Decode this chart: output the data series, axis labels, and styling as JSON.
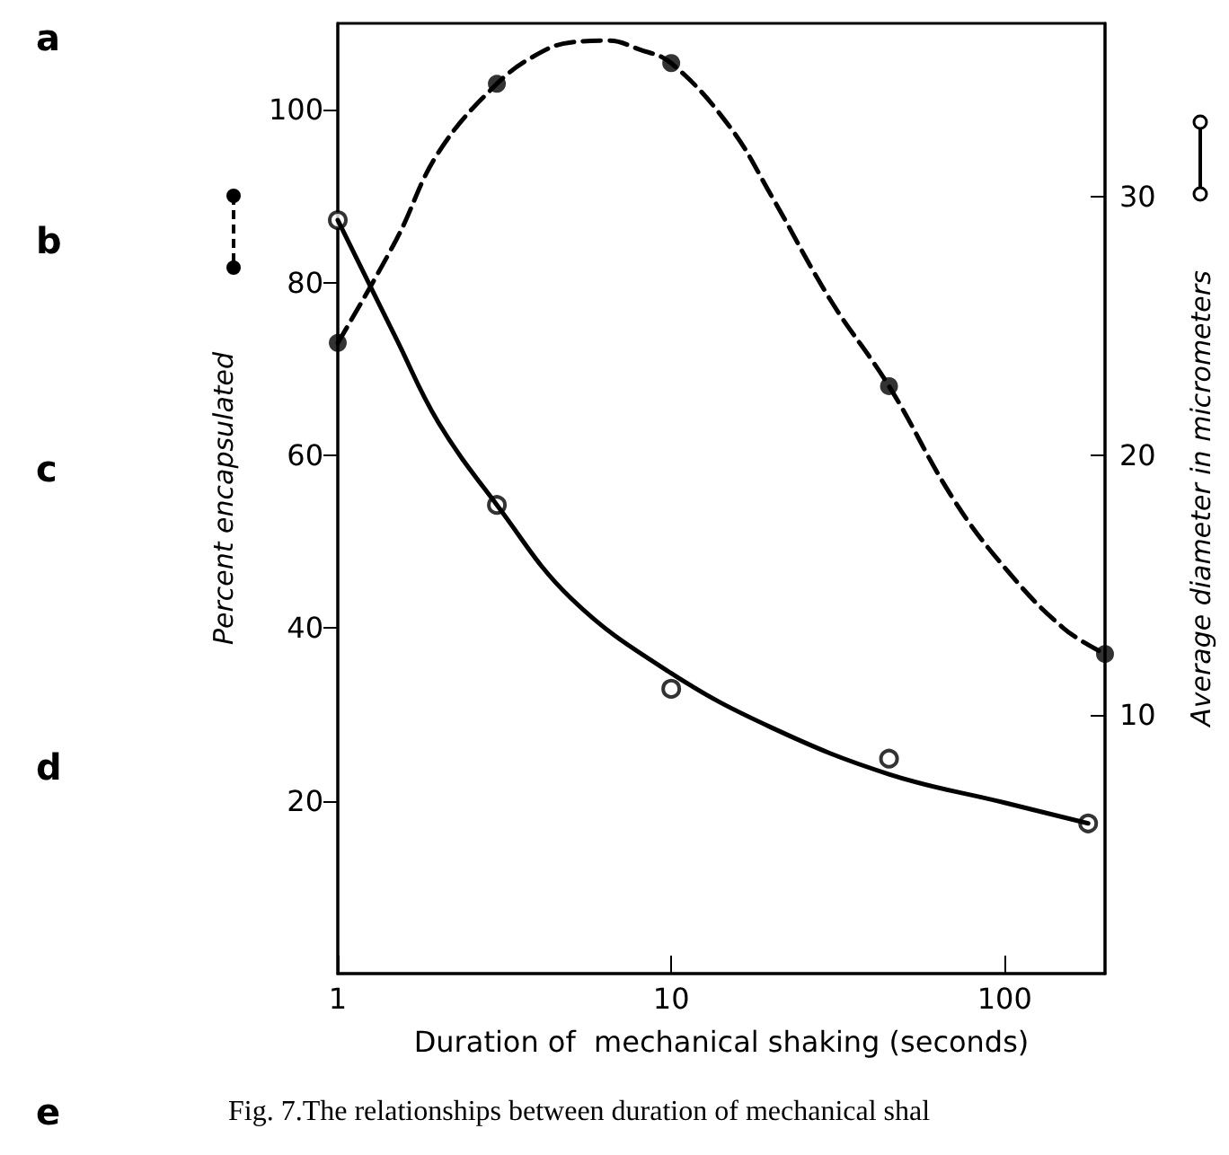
{
  "chart_data": {
    "type": "line",
    "xlabel": "Duration of  mechanical shaking (seconds)",
    "ylabel": "Percent encapsulated",
    "y2label": "Average diameter in micrometers",
    "annotations": [
      "a",
      "b",
      "c",
      "d",
      "e",
      "Fig. 7.The relationships between duration of mechanical shal"
    ],
    "log": "x",
    "xlim": [
      1,
      200
    ],
    "xticks": [
      1,
      10,
      100
    ],
    "ylim": [
      0,
      110
    ],
    "yticks": [
      20,
      40,
      60,
      80,
      100
    ],
    "y2lim": [
      0,
      36.7
    ],
    "y2ticks": [
      10,
      20,
      30
    ],
    "series": [
      {
        "color": "#000000",
        "line_style": "dashed",
        "marker": "none",
        "x": [
          1,
          1.5,
          2,
          3,
          4,
          5,
          6.5,
          8,
          10,
          15,
          20,
          30,
          45,
          70,
          100,
          150,
          200
        ],
        "values": [
          73,
          85,
          95,
          103,
          106.5,
          107.8,
          108,
          107,
          105.4,
          98,
          90,
          78,
          68,
          55,
          47,
          40,
          37
        ]
      },
      {
        "type": "scatter",
        "color": "#000000",
        "marker": "circle",
        "x": [
          1,
          3,
          10,
          45,
          200
        ],
        "values": [
          73,
          103,
          105.4,
          68,
          37
        ]
      },
      {
        "color": "#000000",
        "line_style": "solid",
        "marker": "none",
        "axis": "y2",
        "x": [
          1,
          1.5,
          2,
          3,
          5,
          10,
          20,
          45,
          100,
          178
        ],
        "values": [
          29.1,
          24.5,
          21.3,
          18.1,
          14.5,
          11.6,
          9.5,
          7.7,
          6.6,
          5.8
        ]
      },
      {
        "type": "scatter",
        "color": "#000000",
        "marker": "open_circle",
        "axis": "y2",
        "x": [
          1,
          3,
          10,
          45,
          178
        ],
        "values": [
          29.1,
          18.1,
          11.0,
          8.3,
          5.8
        ]
      }
    ]
  }
}
